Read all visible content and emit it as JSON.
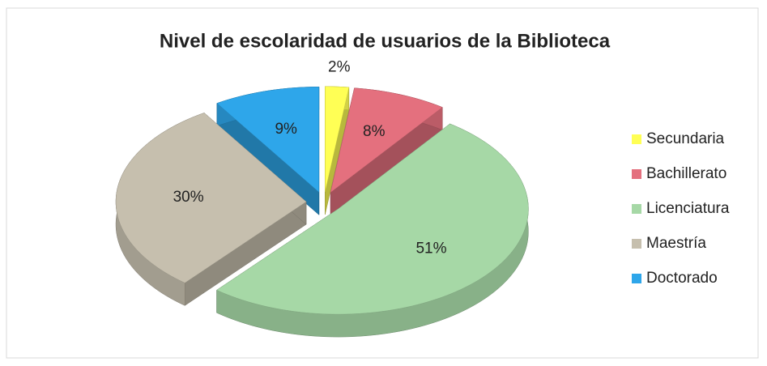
{
  "chart_data": {
    "type": "pie",
    "title": "Nivel de escolaridad de usuarios de la Biblioteca",
    "categories": [
      "Secundaria",
      "Bachillerato",
      "Licenciatura",
      "Maestría",
      "Doctorado"
    ],
    "values": [
      2,
      8,
      51,
      30,
      9
    ],
    "value_labels": [
      "2%",
      "8%",
      "51%",
      "30%",
      "9%"
    ],
    "colors": [
      "#ffff55",
      "#e4707e",
      "#a6d8a6",
      "#c6bfae",
      "#2ea6ea"
    ],
    "legend": "right"
  }
}
